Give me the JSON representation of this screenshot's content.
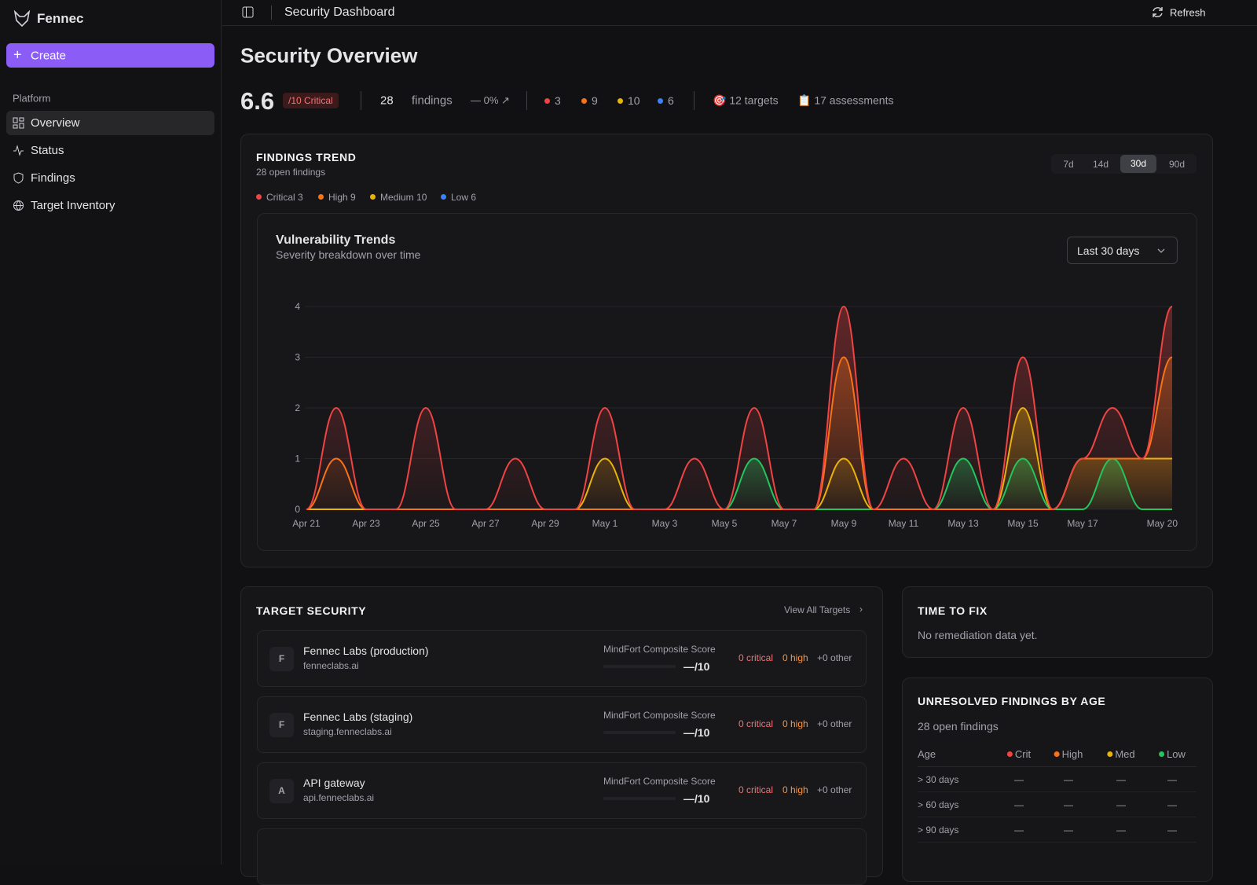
{
  "sidebar": {
    "brand": "Fennec",
    "create": "Create",
    "section": "Platform",
    "nav": [
      "Overview",
      "Status",
      "Findings",
      "Target Inventory"
    ]
  },
  "header": {
    "title": "Security Dashboard",
    "refresh": "Refresh"
  },
  "overview": {
    "title": "Security Overview",
    "score": 6.6,
    "score_label": "/10 Critical",
    "findings_count": 28,
    "findings_label": "findings",
    "change": "— 0% ↗",
    "severity_counts": [
      3,
      9,
      10,
      6
    ],
    "targets": "🎯 12 targets",
    "assessments": "📋 17 assessments"
  },
  "findings_trend": {
    "title": "FINDINGS TREND",
    "subtitle": "28 open findings",
    "ranges": [
      "7d",
      "14d",
      "30d",
      "90d"
    ],
    "legend": [
      "Critical 3",
      "High 9",
      "Medium 10",
      "Low 6"
    ],
    "period_select": "Last 30 days"
  },
  "chart_data": {
    "type": "line",
    "title": "Vulnerability Trends",
    "subtitle": "Severity breakdown over time",
    "categories": [
      "Apr 21",
      null,
      "Apr 23",
      null,
      "Apr 25",
      null,
      "Apr 27",
      null,
      "Apr 29",
      null,
      "May 1",
      null,
      "May 3",
      null,
      "May 5",
      null,
      "May 7",
      null,
      "May 9",
      null,
      "May 11",
      null,
      "May 13",
      null,
      "May 15",
      null,
      "May 17",
      null,
      null,
      "May 20"
    ],
    "series": [
      {
        "color": "#ef4444",
        "values": [
          0,
          2,
          0,
          0,
          2,
          0,
          0,
          1,
          0,
          0,
          2,
          0,
          0,
          1,
          0,
          2,
          0,
          0,
          4,
          0,
          1,
          0,
          2,
          0,
          3,
          0,
          1,
          2,
          1,
          4
        ]
      },
      {
        "color": "#f97316",
        "values": [
          0,
          1,
          0,
          0,
          0,
          0,
          0,
          0,
          0,
          0,
          0,
          0,
          0,
          0,
          0,
          0,
          0,
          0,
          3,
          0,
          0,
          0,
          0,
          0,
          0,
          0,
          1,
          1,
          1,
          3
        ]
      },
      {
        "color": "#eab308",
        "values": [
          0,
          0,
          0,
          0,
          0,
          0,
          0,
          0,
          0,
          0,
          1,
          0,
          0,
          0,
          0,
          0,
          0,
          0,
          1,
          0,
          0,
          0,
          0,
          0,
          2,
          0,
          1,
          1,
          1,
          1
        ]
      },
      {
        "color": "#22c55e",
        "values": [
          0,
          0,
          0,
          0,
          0,
          0,
          0,
          0,
          0,
          0,
          0,
          0,
          0,
          0,
          0,
          1,
          0,
          0,
          0,
          0,
          0,
          0,
          1,
          0,
          1,
          0,
          0,
          1,
          0,
          0
        ]
      }
    ],
    "ylim": [
      0,
      4
    ],
    "yticks": [
      0,
      1,
      2,
      3,
      4
    ],
    "grid": true
  },
  "target_security": {
    "title": "TARGET SECURITY",
    "view_all": "View All Targets",
    "targets": [
      {
        "initial": "F",
        "name": "Fennec Labs (production)",
        "host": "fenneclabs.ai",
        "score_label": "MindFort Composite Score",
        "score": "—/10",
        "critical": "0 critical",
        "high": "0 high",
        "other": "+0 other"
      },
      {
        "initial": "F",
        "name": "Fennec Labs (staging)",
        "host": "staging.fenneclabs.ai",
        "score_label": "MindFort Composite Score",
        "score": "—/10",
        "critical": "0 critical",
        "high": "0 high",
        "other": "+0 other"
      },
      {
        "initial": "A",
        "name": "API gateway",
        "host": "api.fenneclabs.ai",
        "score_label": "MindFort Composite Score",
        "score": "—/10",
        "critical": "0 critical",
        "high": "0 high",
        "other": "+0 other"
      }
    ]
  },
  "time_to_fix": {
    "title": "TIME TO FIX",
    "empty": "No remediation data yet."
  },
  "age_table": {
    "title": "UNRESOLVED FINDINGS BY AGE",
    "subtitle": "28 open findings",
    "columns": [
      "Age",
      "Crit",
      "High",
      "Med",
      "Low"
    ],
    "rows": [
      [
        "> 30 days",
        "—",
        "—",
        "—",
        "—"
      ],
      [
        "> 60 days",
        "—",
        "—",
        "—",
        "—"
      ],
      [
        "> 90 days",
        "—",
        "—",
        "—",
        "—"
      ]
    ]
  }
}
